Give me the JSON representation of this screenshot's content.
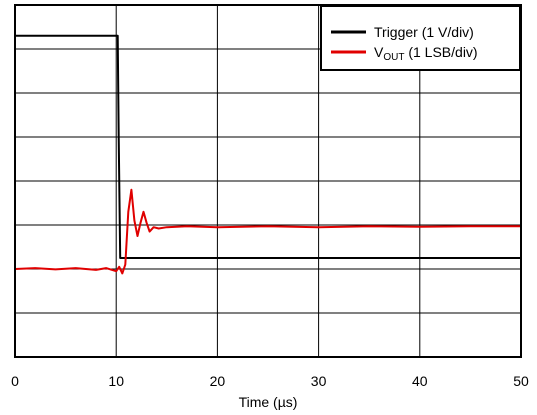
{
  "chart_data": {
    "type": "line",
    "xlabel": "Time (µs)",
    "ylabel": "",
    "xlim": [
      0,
      50
    ],
    "x_ticks": [
      "0",
      "10",
      "20",
      "30",
      "40",
      "50"
    ],
    "y_divisions": 8,
    "grid": true,
    "legend_position": "top-right",
    "series": [
      {
        "name": "Trigger (1 V/div)",
        "legend_main": "Trigger (1 V/div)",
        "color": "#000000",
        "x": [
          0,
          10.15,
          10.25,
          10.4,
          50
        ],
        "y": [
          7.3,
          7.3,
          5.0,
          2.25,
          2.25
        ]
      },
      {
        "name": "VOUT (1 LSB/div)",
        "legend_main": "V",
        "legend_sub": "OUT",
        "legend_rest": " (1 LSB/div)",
        "color": "#e00000",
        "x": [
          0,
          2,
          4,
          6,
          8,
          9,
          10,
          10.3,
          10.6,
          10.9,
          11.2,
          11.5,
          11.8,
          12.1,
          12.4,
          12.7,
          13.0,
          13.3,
          13.7,
          14.2,
          15,
          17,
          20,
          25,
          30,
          35,
          40,
          45,
          50
        ],
        "y": [
          2.0,
          2.02,
          1.99,
          2.02,
          1.98,
          2.02,
          1.95,
          2.05,
          1.9,
          2.1,
          3.3,
          3.8,
          3.1,
          2.75,
          3.05,
          3.3,
          3.05,
          2.85,
          2.95,
          2.92,
          2.95,
          2.97,
          2.95,
          2.97,
          2.95,
          2.97,
          2.96,
          2.97,
          2.97
        ]
      }
    ]
  }
}
